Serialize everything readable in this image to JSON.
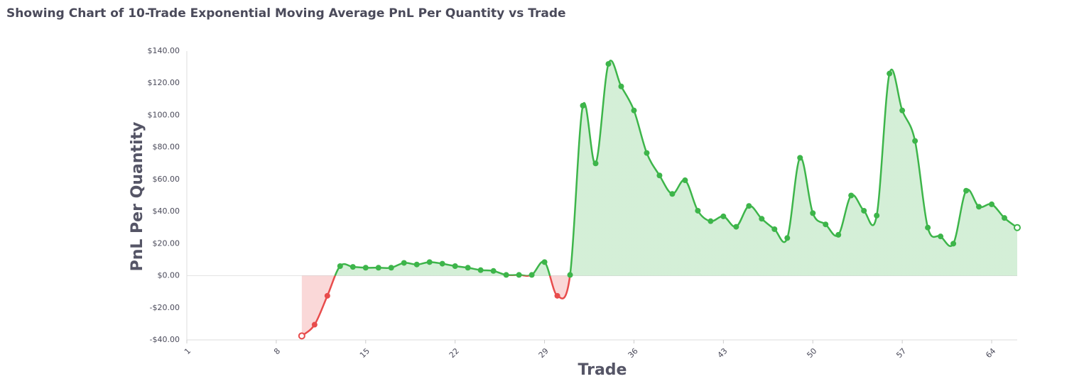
{
  "chart_data": {
    "type": "line",
    "title": "Showing Chart of 10-Trade Exponential Moving Average PnL Per Quantity vs Trade",
    "x_label": "Trade",
    "y_label": "PnL Per Quantity",
    "x": [
      1,
      2,
      3,
      4,
      5,
      6,
      7,
      8,
      9,
      10,
      11,
      12,
      13,
      14,
      15,
      16,
      17,
      18,
      19,
      20,
      21,
      22,
      23,
      24,
      25,
      26,
      27,
      28,
      29,
      30,
      31,
      32,
      33,
      34,
      35,
      36,
      37,
      38,
      39,
      40,
      41,
      42,
      43,
      44,
      45,
      46,
      47,
      48,
      49,
      50,
      51,
      52,
      53,
      54,
      55,
      56,
      57,
      58,
      59,
      60,
      61,
      62,
      63,
      64,
      65,
      66
    ],
    "values": [
      null,
      null,
      null,
      null,
      null,
      null,
      null,
      null,
      null,
      -37.5,
      -30.5,
      -12.5,
      6,
      5.5,
      5,
      5,
      5,
      8,
      7,
      8.5,
      7.5,
      6,
      5,
      3.5,
      3,
      0.5,
      0.5,
      0.5,
      8.5,
      -12.5,
      0.5,
      106,
      70,
      132,
      118,
      103,
      76.5,
      62.5,
      51,
      59.5,
      40.5,
      34,
      37,
      30.5,
      43.5,
      35.5,
      29,
      23.5,
      73.5,
      39,
      32,
      25.5,
      50,
      40.5,
      37.5,
      126,
      103,
      84,
      30,
      24.5,
      20,
      53,
      43,
      44.5,
      36,
      30
    ],
    "color": "#3db54a",
    "negative_color": "#e84c4c",
    "xlim": [
      1,
      66
    ],
    "xticks": [
      1,
      8,
      15,
      22,
      29,
      36,
      43,
      50,
      57,
      64
    ],
    "ylim": [
      -40,
      140
    ],
    "yticks": [
      {
        "value": -40,
        "label": "-$40.00"
      },
      {
        "value": -20,
        "label": "-$20.00"
      },
      {
        "value": 0,
        "label": "$0.00"
      },
      {
        "value": 20,
        "label": "$20.00"
      },
      {
        "value": 40,
        "label": "$40.00"
      },
      {
        "value": 60,
        "label": "$60.00"
      },
      {
        "value": 80,
        "label": "$80.00"
      },
      {
        "value": 100,
        "label": "$100.00"
      },
      {
        "value": 120,
        "label": "$120.00"
      },
      {
        "value": 140,
        "label": "$140.00"
      }
    ],
    "grid": false
  }
}
